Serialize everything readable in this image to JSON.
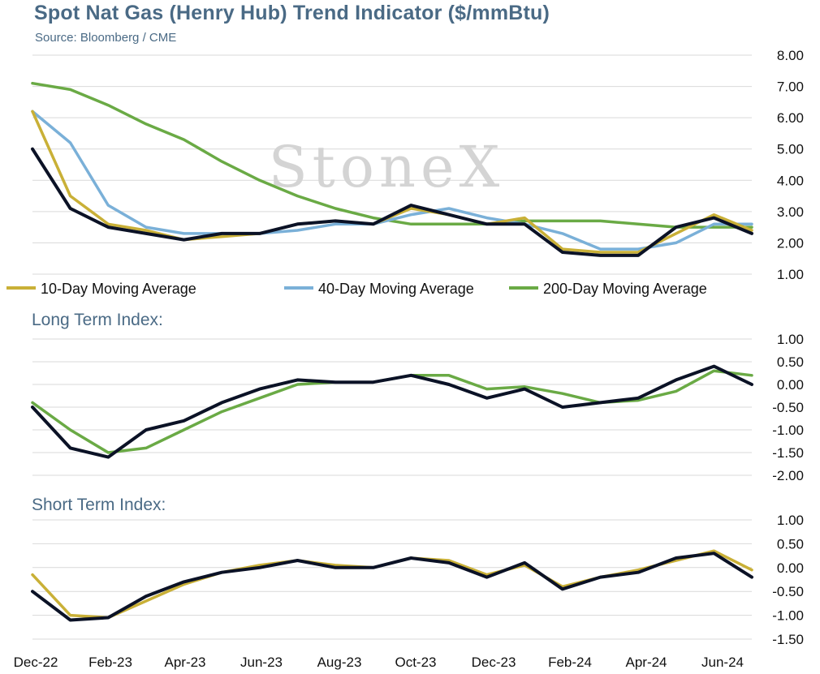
{
  "title": "Spot Nat Gas (Henry Hub) Trend Indicator ($/mmBtu)",
  "source": "Source: Bloomberg / CME",
  "watermark": "StoneX",
  "colors": {
    "price": "#0b1226",
    "ma10": "#c9b037",
    "ma40": "#7ab0d8",
    "ma200": "#6aaa45",
    "grid": "#d9d9d9"
  },
  "x_axis_labels": [
    "Dec-22",
    "Feb-23",
    "Apr-23",
    "Jun-23",
    "Aug-23",
    "Oct-23",
    "Dec-23",
    "Feb-24",
    "Apr-24",
    "Jun-24"
  ],
  "chart_data": [
    {
      "type": "line",
      "title": "Spot Nat Gas (Henry Hub) Trend Indicator ($/mmBtu)",
      "ylim": [
        1,
        8
      ],
      "y_ticks": [
        "1.00",
        "2.00",
        "3.00",
        "4.00",
        "5.00",
        "6.00",
        "7.00",
        "8.00"
      ],
      "x_ticks": [
        "Dec-22",
        "Feb-23",
        "Apr-23",
        "Jun-23",
        "Aug-23",
        "Oct-23",
        "Dec-23",
        "Feb-24",
        "Apr-24",
        "Jun-24"
      ],
      "x": [
        "Dec-22",
        "Jan-23",
        "Feb-23",
        "Mar-23",
        "Apr-23",
        "May-23",
        "Jun-23",
        "Jul-23",
        "Aug-23",
        "Sep-23",
        "Oct-23",
        "Nov-23",
        "Dec-23",
        "Jan-24",
        "Feb-24",
        "Mar-24",
        "Apr-24",
        "May-24",
        "Jun-24",
        "Jul-24"
      ],
      "legend_position": "bottom",
      "series": [
        {
          "name": "",
          "color": "#0b1226",
          "values": [
            5.0,
            3.1,
            2.5,
            2.3,
            2.1,
            2.3,
            2.3,
            2.6,
            2.7,
            2.6,
            3.2,
            2.9,
            2.6,
            2.6,
            1.7,
            1.6,
            1.6,
            2.5,
            2.8,
            2.3
          ]
        },
        {
          "name": "10-Day Moving Average",
          "color": "#c9b037",
          "values": [
            6.2,
            3.5,
            2.6,
            2.4,
            2.1,
            2.2,
            2.3,
            2.6,
            2.7,
            2.6,
            3.1,
            2.9,
            2.6,
            2.8,
            1.8,
            1.7,
            1.7,
            2.3,
            2.9,
            2.4
          ]
        },
        {
          "name": "40-Day Moving Average",
          "color": "#7ab0d8",
          "values": [
            6.2,
            5.2,
            3.2,
            2.5,
            2.3,
            2.3,
            2.3,
            2.4,
            2.6,
            2.6,
            2.9,
            3.1,
            2.8,
            2.6,
            2.3,
            1.8,
            1.8,
            2.0,
            2.6,
            2.6
          ]
        },
        {
          "name": "200-Day Moving Average",
          "color": "#6aaa45",
          "values": [
            7.1,
            6.9,
            6.4,
            5.8,
            5.3,
            4.6,
            4.0,
            3.5,
            3.1,
            2.8,
            2.6,
            2.6,
            2.6,
            2.7,
            2.7,
            2.7,
            2.6,
            2.5,
            2.5,
            2.5
          ]
        }
      ]
    },
    {
      "type": "line",
      "title": "Long Term Index:",
      "ylim": [
        -2.0,
        1.0
      ],
      "y_ticks": [
        "-2.00",
        "-1.50",
        "-1.00",
        "-0.50",
        "0.00",
        "0.50",
        "1.00"
      ],
      "x": [
        "Dec-22",
        "Jan-23",
        "Feb-23",
        "Mar-23",
        "Apr-23",
        "May-23",
        "Jun-23",
        "Jul-23",
        "Aug-23",
        "Sep-23",
        "Oct-23",
        "Nov-23",
        "Dec-23",
        "Jan-24",
        "Feb-24",
        "Mar-24",
        "Apr-24",
        "May-24",
        "Jun-24",
        "Jul-24"
      ],
      "series": [
        {
          "name": "",
          "color": "#0b1226",
          "values": [
            -0.5,
            -1.4,
            -1.6,
            -1.0,
            -0.8,
            -0.4,
            -0.1,
            0.1,
            0.05,
            0.05,
            0.2,
            0.0,
            -0.3,
            -0.1,
            -0.5,
            -0.4,
            -0.3,
            0.1,
            0.4,
            0.0
          ]
        },
        {
          "name": "",
          "color": "#6aaa45",
          "values": [
            -0.4,
            -1.0,
            -1.5,
            -1.4,
            -1.0,
            -0.6,
            -0.3,
            0.0,
            0.05,
            0.05,
            0.2,
            0.2,
            -0.1,
            -0.05,
            -0.2,
            -0.4,
            -0.35,
            -0.15,
            0.3,
            0.2
          ]
        }
      ]
    },
    {
      "type": "line",
      "title": "Short Term Index:",
      "ylim": [
        -1.5,
        1.0
      ],
      "y_ticks": [
        "-1.50",
        "-1.00",
        "-0.50",
        "0.00",
        "0.50",
        "1.00"
      ],
      "x": [
        "Dec-22",
        "Jan-23",
        "Feb-23",
        "Mar-23",
        "Apr-23",
        "May-23",
        "Jun-23",
        "Jul-23",
        "Aug-23",
        "Sep-23",
        "Oct-23",
        "Nov-23",
        "Dec-23",
        "Jan-24",
        "Feb-24",
        "Mar-24",
        "Apr-24",
        "May-24",
        "Jun-24",
        "Jul-24"
      ],
      "series": [
        {
          "name": "",
          "color": "#0b1226",
          "values": [
            -0.5,
            -1.1,
            -1.05,
            -0.6,
            -0.3,
            -0.1,
            0.0,
            0.15,
            0.0,
            0.0,
            0.2,
            0.1,
            -0.2,
            0.1,
            -0.45,
            -0.2,
            -0.1,
            0.2,
            0.3,
            -0.2
          ]
        },
        {
          "name": "",
          "color": "#c9b037",
          "values": [
            -0.15,
            -1.0,
            -1.05,
            -0.7,
            -0.35,
            -0.1,
            0.05,
            0.15,
            0.05,
            0.0,
            0.2,
            0.15,
            -0.15,
            0.05,
            -0.4,
            -0.2,
            -0.05,
            0.15,
            0.35,
            -0.05
          ]
        }
      ]
    }
  ]
}
